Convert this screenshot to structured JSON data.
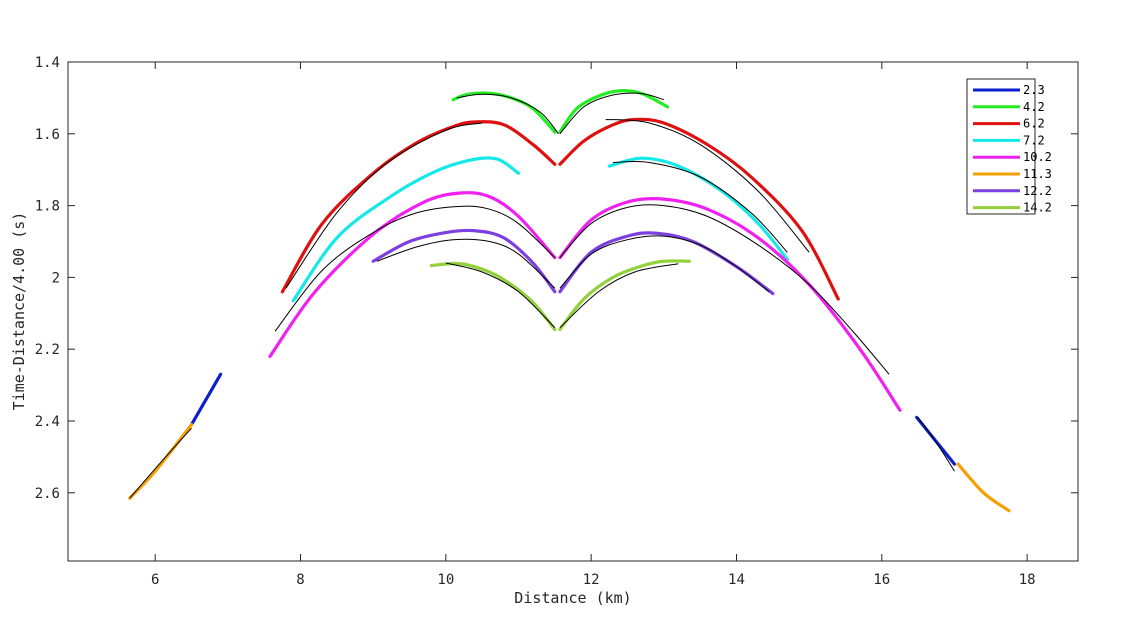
{
  "chart_data": {
    "type": "line",
    "xlabel": "Distance (km)",
    "ylabel": "Time-Distance/4.00 (s)",
    "xlim": [
      4.8,
      18.7
    ],
    "ylim": [
      2.79,
      1.4
    ],
    "y_reversed": true,
    "xticks": [
      6,
      8,
      10,
      12,
      14,
      16,
      18
    ],
    "yticks": [
      1.4,
      1.6,
      1.8,
      2,
      2.2,
      2.4,
      2.6
    ],
    "ytick_labels": [
      "1.4",
      "1.6",
      "1.8",
      "2",
      "2.2",
      "2.4",
      "2.6"
    ],
    "legend_position": "top-right",
    "grid": false,
    "fit_color": "#000000",
    "series": [
      {
        "name": "2.3",
        "color": "#0b1fcf",
        "segments": [
          {
            "x": [
              6.5,
              6.9
            ],
            "y": [
              2.41,
              2.27
            ]
          },
          {
            "x": [
              16.48,
              17.0
            ],
            "y": [
              2.39,
              2.52
            ]
          }
        ]
      },
      {
        "name": "4.2",
        "color": "#22ee22",
        "segments": [
          {
            "x": [
              10.1,
              10.3,
              10.6,
              10.9,
              11.2,
              11.5
            ],
            "y": [
              1.505,
              1.49,
              1.487,
              1.5,
              1.53,
              1.595
            ]
          },
          {
            "x": [
              11.57,
              11.8,
              12.1,
              12.4,
              12.7,
              13.05
            ],
            "y": [
              1.595,
              1.53,
              1.495,
              1.48,
              1.488,
              1.525
            ]
          }
        ]
      },
      {
        "name": "6.2",
        "color": "#e01010",
        "segments": [
          {
            "x": [
              7.75,
              8.3,
              9.0,
              9.6,
              10.1,
              10.4,
              10.8,
              11.2,
              11.5
            ],
            "y": [
              2.04,
              1.85,
              1.71,
              1.625,
              1.58,
              1.567,
              1.575,
              1.63,
              1.685
            ]
          },
          {
            "x": [
              11.57,
              11.9,
              12.3,
              12.6,
              13.0,
              13.6,
              14.2,
              14.9,
              15.4
            ],
            "y": [
              1.685,
              1.62,
              1.575,
              1.56,
              1.57,
              1.63,
              1.72,
              1.87,
              2.06
            ]
          }
        ]
      },
      {
        "name": "7.2",
        "color": "#15e8e8",
        "segments": [
          {
            "x": [
              7.9,
              8.5,
              9.2,
              9.8,
              10.3,
              10.7,
              11.0
            ],
            "y": [
              2.065,
              1.89,
              1.78,
              1.71,
              1.675,
              1.67,
              1.71
            ]
          },
          {
            "x": [
              12.25,
              12.7,
              13.2,
              13.8,
              14.3,
              14.7
            ],
            "y": [
              1.69,
              1.668,
              1.69,
              1.76,
              1.85,
              1.95
            ]
          }
        ]
      },
      {
        "name": "10.2",
        "color": "#f020f0",
        "segments": [
          {
            "x": [
              7.58,
              8.2,
              9.0,
              9.7,
              10.2,
              10.6,
              11.0,
              11.5
            ],
            "y": [
              2.22,
              2.04,
              1.88,
              1.79,
              1.765,
              1.775,
              1.83,
              1.945
            ]
          },
          {
            "x": [
              11.57,
              12.0,
              12.5,
              13.0,
              13.6,
              14.3,
              15.0,
              15.7,
              16.25
            ],
            "y": [
              1.945,
              1.84,
              1.79,
              1.782,
              1.81,
              1.89,
              2.02,
              2.2,
              2.37
            ]
          }
        ]
      },
      {
        "name": "11.3",
        "color": "#f5a000",
        "segments": [
          {
            "x": [
              5.65,
              6.0,
              6.5
            ],
            "y": [
              2.615,
              2.54,
              2.41
            ]
          },
          {
            "x": [
              17.05,
              17.4,
              17.75
            ],
            "y": [
              2.52,
              2.6,
              2.65
            ]
          }
        ]
      },
      {
        "name": "12.2",
        "color": "#7e3fe0",
        "segments": [
          {
            "x": [
              9.0,
              9.5,
              10.0,
              10.4,
              10.8,
              11.2,
              11.5
            ],
            "y": [
              1.955,
              1.9,
              1.875,
              1.87,
              1.89,
              1.96,
              2.04
            ]
          },
          {
            "x": [
              11.57,
              12.0,
              12.5,
              12.9,
              13.4,
              14.0,
              14.5
            ],
            "y": [
              2.04,
              1.93,
              1.885,
              1.877,
              1.9,
              1.97,
              2.045
            ]
          }
        ]
      },
      {
        "name": "14.2",
        "color": "#93d13b",
        "segments": [
          {
            "x": [
              9.8,
              10.2,
              10.6,
              10.9,
              11.2,
              11.5
            ],
            "y": [
              1.967,
              1.962,
              1.985,
              2.02,
              2.07,
              2.145
            ]
          },
          {
            "x": [
              11.57,
              11.9,
              12.3,
              12.7,
              13.0,
              13.35
            ],
            "y": [
              2.145,
              2.06,
              2.0,
              1.968,
              1.955,
              1.955
            ]
          }
        ]
      }
    ],
    "fits": [
      {
        "x": [
          7.65,
          8.3,
          9.0,
          9.6,
          10.2,
          10.6,
          11.0,
          11.5
        ],
        "y": [
          2.15,
          1.98,
          1.875,
          1.82,
          1.802,
          1.81,
          1.85,
          1.945
        ]
      },
      {
        "x": [
          11.57,
          12.0,
          12.5,
          13.0,
          13.6,
          14.3,
          15.0,
          15.6,
          16.1
        ],
        "y": [
          1.945,
          1.85,
          1.805,
          1.8,
          1.83,
          1.91,
          2.02,
          2.15,
          2.27
        ]
      },
      {
        "x": [
          9.05,
          9.6,
          10.1,
          10.6,
          11.0,
          11.5
        ],
        "y": [
          1.955,
          1.915,
          1.895,
          1.9,
          1.935,
          2.03
        ]
      },
      {
        "x": [
          11.57,
          12.0,
          12.5,
          13.0,
          13.5,
          14.0,
          14.45
        ],
        "y": [
          2.03,
          1.935,
          1.895,
          1.885,
          1.91,
          1.97,
          2.04
        ]
      },
      {
        "x": [
          10.0,
          10.5,
          11.0,
          11.5
        ],
        "y": [
          1.96,
          1.985,
          2.04,
          2.14
        ]
      },
      {
        "x": [
          11.57,
          12.1,
          12.6,
          13.2
        ],
        "y": [
          2.14,
          2.04,
          1.985,
          1.962
        ]
      },
      {
        "x": [
          10.15,
          10.5,
          10.9,
          11.3,
          11.55
        ],
        "y": [
          1.5,
          1.49,
          1.5,
          1.54,
          1.6
        ]
      },
      {
        "x": [
          11.57,
          11.9,
          12.3,
          12.7,
          13.0
        ],
        "y": [
          1.6,
          1.525,
          1.492,
          1.488,
          1.505
        ]
      },
      {
        "x": [
          7.8,
          8.5,
          9.2,
          10.0,
          10.5
        ],
        "y": [
          2.03,
          1.82,
          1.68,
          1.59,
          1.57
        ]
      },
      {
        "x": [
          12.2,
          12.8,
          13.5,
          14.3,
          15.0
        ],
        "y": [
          1.56,
          1.57,
          1.63,
          1.76,
          1.93
        ]
      },
      {
        "x": [
          12.3,
          12.8,
          13.5,
          14.2,
          14.7
        ],
        "y": [
          1.68,
          1.68,
          1.72,
          1.82,
          1.93
        ]
      },
      {
        "x": [
          16.5,
          16.75,
          17.0
        ],
        "y": [
          2.39,
          2.46,
          2.54
        ]
      },
      {
        "x": [
          5.65,
          6.1,
          6.5
        ],
        "y": [
          2.615,
          2.51,
          2.42
        ]
      }
    ]
  }
}
